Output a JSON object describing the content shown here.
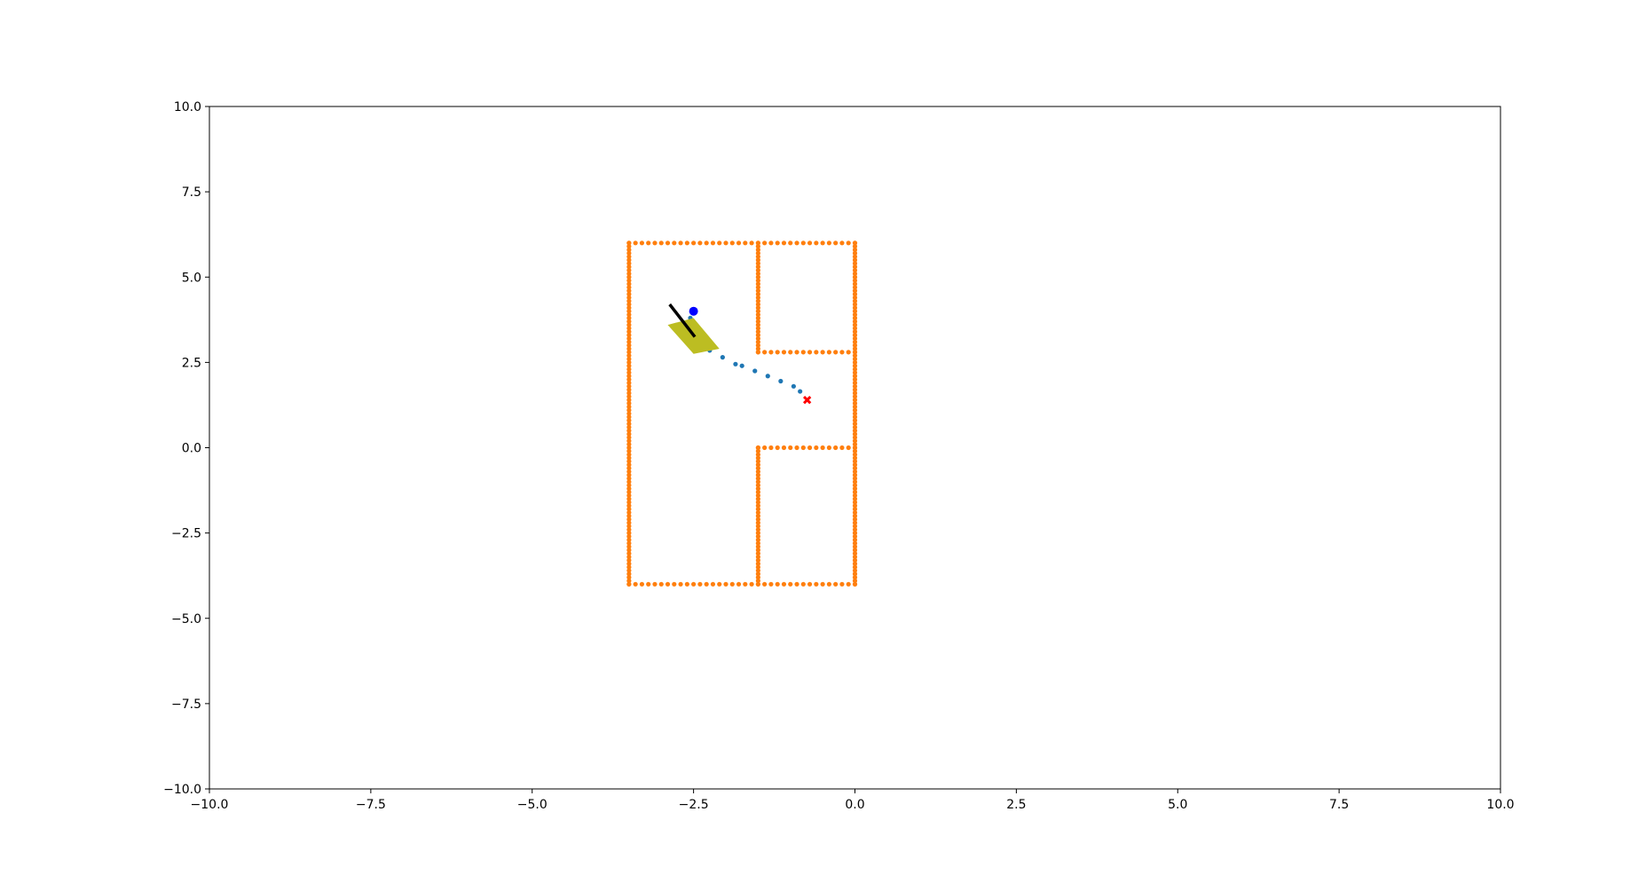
{
  "chart_data": {
    "type": "scatter",
    "title": "",
    "xlabel": "",
    "ylabel": "",
    "xlim": [
      -10,
      10
    ],
    "ylim": [
      -10,
      10
    ],
    "grid": false,
    "x_ticks": [
      -10,
      -7.5,
      -5,
      -2.5,
      0,
      2.5,
      5,
      7.5,
      10
    ],
    "y_ticks": [
      -10,
      -7.5,
      -5,
      -2.5,
      0,
      2.5,
      5,
      7.5,
      10
    ],
    "x_tick_labels": [
      "−10.0",
      "−7.5",
      "−5.0",
      "−2.5",
      "0.0",
      "2.5",
      "5.0",
      "7.5",
      "10.0"
    ],
    "y_tick_labels": [
      "−10.0",
      "−7.5",
      "−5.0",
      "−2.5",
      "0.0",
      "2.5",
      "5.0",
      "7.5",
      "10.0"
    ],
    "colors": {
      "walls": "#ff7f0e",
      "path": "#1f77b4",
      "robot_body": "#bcbd22",
      "heading": "#000000",
      "current_point": "#0000ff",
      "goal": "#ff0000"
    },
    "series": [
      {
        "kind": "walls",
        "segments": [
          {
            "from": [
              -3.5,
              6.0
            ],
            "to": [
              0.0,
              6.0
            ]
          },
          {
            "from": [
              -3.5,
              -4.0
            ],
            "to": [
              0.0,
              -4.0
            ]
          },
          {
            "from": [
              -3.5,
              -4.0
            ],
            "to": [
              -3.5,
              6.0
            ]
          },
          {
            "from": [
              0.0,
              -4.0
            ],
            "to": [
              0.0,
              6.0
            ]
          },
          {
            "from": [
              -1.5,
              2.8
            ],
            "to": [
              -1.5,
              6.0
            ]
          },
          {
            "from": [
              -1.5,
              -4.0
            ],
            "to": [
              -1.5,
              0.0
            ]
          },
          {
            "from": [
              -1.5,
              2.8
            ],
            "to": [
              0.0,
              2.8
            ]
          },
          {
            "from": [
              -1.5,
              0.0
            ],
            "to": [
              0.0,
              0.0
            ]
          }
        ],
        "spacing": 0.1
      },
      {
        "kind": "path",
        "points": [
          [
            -2.55,
            3.8
          ],
          [
            -2.38,
            3.05
          ],
          [
            -2.25,
            2.85
          ],
          [
            -2.05,
            2.65
          ],
          [
            -1.85,
            2.45
          ],
          [
            -1.75,
            2.4
          ],
          [
            -1.55,
            2.25
          ],
          [
            -1.35,
            2.1
          ],
          [
            -1.15,
            1.95
          ],
          [
            -0.95,
            1.8
          ],
          [
            -0.85,
            1.65
          ]
        ]
      },
      {
        "kind": "robot",
        "body": [
          [
            -2.9,
            3.6
          ],
          [
            -2.5,
            3.8
          ],
          [
            -2.1,
            2.9
          ],
          [
            -2.5,
            2.75
          ]
        ],
        "heading": {
          "from": [
            -2.87,
            4.2
          ],
          "to": [
            -2.48,
            3.25
          ]
        }
      },
      {
        "kind": "current_point",
        "points": [
          [
            -2.5,
            4.0
          ]
        ]
      },
      {
        "kind": "goal",
        "points": [
          [
            -0.74,
            1.4
          ]
        ]
      }
    ]
  }
}
